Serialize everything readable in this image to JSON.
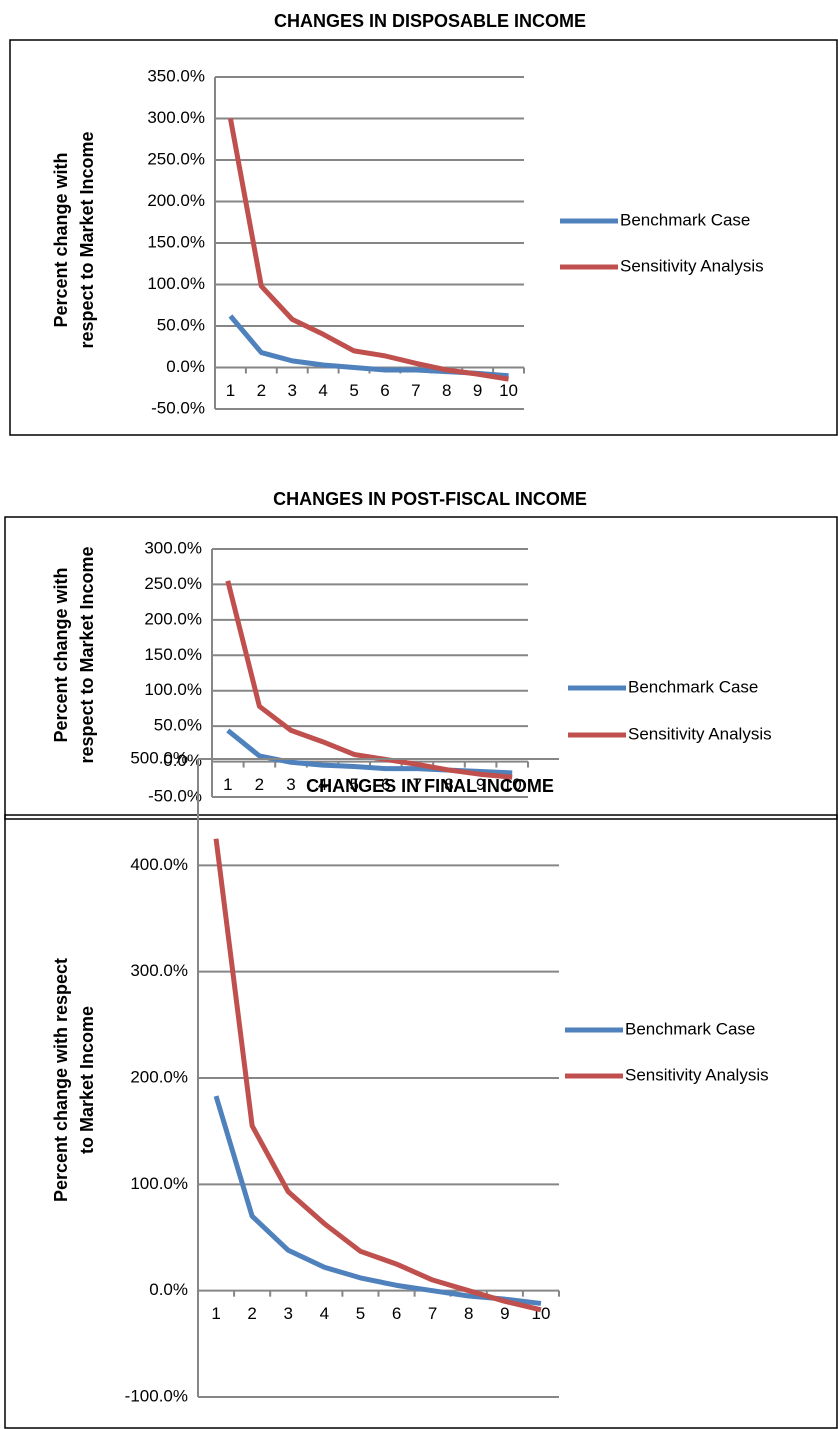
{
  "chart_data": [
    {
      "type": "line",
      "title": "CHANGES IN DISPOSABLE INCOME",
      "y_label": [
        "Percent change with",
        "respect to Market Income"
      ],
      "categories": [
        "1",
        "2",
        "3",
        "4",
        "5",
        "6",
        "7",
        "8",
        "9",
        "10"
      ],
      "series": [
        {
          "name": "Benchmark Case",
          "color": "#4f81bd",
          "values": [
            62,
            18,
            8,
            3,
            0,
            -3,
            -3,
            -5,
            -7,
            -10
          ]
        },
        {
          "name": "Sensitivity Analysis",
          "color": "#c0504d",
          "values": [
            300,
            98,
            58,
            40,
            20,
            14,
            5,
            -3,
            -8,
            -14
          ]
        }
      ],
      "ylim": [
        -50,
        350
      ],
      "yticks": [
        {
          "value": -50,
          "label": "-50.0%"
        },
        {
          "value": 0,
          "label": "0.0%"
        },
        {
          "value": 50,
          "label": "50.0%"
        },
        {
          "value": 100,
          "label": "100.0%"
        },
        {
          "value": 150,
          "label": "150.0%"
        },
        {
          "value": 200,
          "label": "200.0%"
        },
        {
          "value": 250,
          "label": "250.0%"
        },
        {
          "value": 300,
          "label": "300.0%"
        },
        {
          "value": 350,
          "label": "350.0%"
        }
      ],
      "grid": true,
      "legend": "right"
    },
    {
      "type": "line",
      "title": "CHANGES IN POST-FISCAL INCOME",
      "y_label": [
        "Percent change with",
        "respect to Market Income"
      ],
      "categories": [
        "1",
        "2",
        "3",
        "4",
        "5",
        "6",
        "7",
        "8",
        "9",
        "10"
      ],
      "series": [
        {
          "name": "Benchmark Case",
          "color": "#4f81bd",
          "values": [
            44,
            8,
            -1,
            -5,
            -7,
            -10,
            -10,
            -12,
            -14,
            -16
          ]
        },
        {
          "name": "Sensitivity Analysis",
          "color": "#c0504d",
          "values": [
            255,
            78,
            44,
            28,
            10,
            3,
            -4,
            -12,
            -18,
            -22
          ]
        }
      ],
      "ylim": [
        -50,
        300
      ],
      "yticks": [
        {
          "value": -50,
          "label": "-50.0%"
        },
        {
          "value": 0,
          "label": "0.0%"
        },
        {
          "value": 50,
          "label": "50.0%"
        },
        {
          "value": 100,
          "label": "100.0%"
        },
        {
          "value": 150,
          "label": "150.0%"
        },
        {
          "value": 200,
          "label": "200.0%"
        },
        {
          "value": 250,
          "label": "250.0%"
        },
        {
          "value": 300,
          "label": "300.0%"
        }
      ],
      "grid": true,
      "legend": "right"
    },
    {
      "type": "line",
      "title": "CHANGES IN FINAL INCOME",
      "y_label": [
        "Percent change with respect",
        "to Market Income"
      ],
      "categories": [
        "1",
        "2",
        "3",
        "4",
        "5",
        "6",
        "7",
        "8",
        "9",
        "10"
      ],
      "series": [
        {
          "name": "Benchmark Case",
          "color": "#4f81bd",
          "values": [
            183,
            70,
            38,
            22,
            12,
            5,
            0,
            -5,
            -8,
            -12
          ]
        },
        {
          "name": "Sensitivity Analysis",
          "color": "#c0504d",
          "values": [
            425,
            155,
            93,
            63,
            37,
            25,
            10,
            0,
            -10,
            -18
          ]
        }
      ],
      "ylim": [
        -100,
        500
      ],
      "yticks": [
        {
          "value": -100,
          "label": "-100.0%"
        },
        {
          "value": 0,
          "label": "0.0%"
        },
        {
          "value": 100,
          "label": "100.0%"
        },
        {
          "value": 200,
          "label": "200.0%"
        },
        {
          "value": 300,
          "label": "300.0%"
        },
        {
          "value": 400,
          "label": "400.0%"
        },
        {
          "value": 500,
          "label": "500.0%"
        }
      ],
      "grid": true,
      "legend": "right"
    }
  ]
}
